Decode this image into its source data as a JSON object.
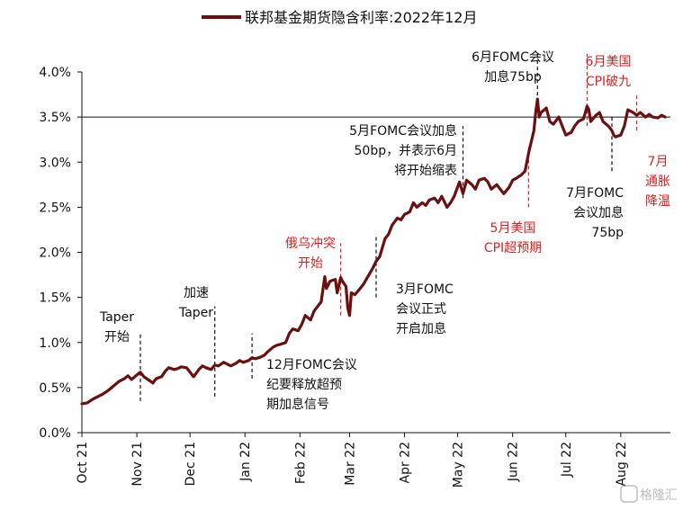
{
  "chart_data": {
    "type": "line",
    "legend": {
      "label": "联邦基金期货隐含利率:2022年12月",
      "placement": "top-center"
    },
    "colors": {
      "series": "#6b0f0f",
      "annotation_black": "#111111",
      "annotation_red": "#e02020"
    },
    "ylim": [
      0.0,
      4.0
    ],
    "yticks": [
      "0.0%",
      "0.5%",
      "1.0%",
      "1.5%",
      "2.0%",
      "2.5%",
      "3.0%",
      "3.5%",
      "4.0%"
    ],
    "xlim": [
      "2021-10-01",
      "2022-08-29"
    ],
    "xticks": [
      {
        "date": "2021-10-01",
        "label": "Oct 21"
      },
      {
        "date": "2021-11-01",
        "label": "Nov 21"
      },
      {
        "date": "2021-12-01",
        "label": "Dec 21"
      },
      {
        "date": "2022-01-01",
        "label": "Jan 22"
      },
      {
        "date": "2022-02-01",
        "label": "Feb 22"
      },
      {
        "date": "2022-03-01",
        "label": "Mar 22"
      },
      {
        "date": "2022-04-01",
        "label": "Apr 22"
      },
      {
        "date": "2022-05-01",
        "label": "May 22"
      },
      {
        "date": "2022-06-01",
        "label": "Jun 22"
      },
      {
        "date": "2022-07-01",
        "label": "Jul 22"
      },
      {
        "date": "2022-08-01",
        "label": "Aug 22"
      }
    ],
    "reference_line": 3.5,
    "series": [
      {
        "name": "联邦基金期货隐含利率:2022年12月",
        "points": [
          [
            "2021-10-01",
            0.32
          ],
          [
            "2021-10-04",
            0.33
          ],
          [
            "2021-10-07",
            0.37
          ],
          [
            "2021-10-10",
            0.4
          ],
          [
            "2021-10-13",
            0.43
          ],
          [
            "2021-10-16",
            0.47
          ],
          [
            "2021-10-19",
            0.52
          ],
          [
            "2021-10-22",
            0.57
          ],
          [
            "2021-10-25",
            0.6
          ],
          [
            "2021-10-27",
            0.63
          ],
          [
            "2021-10-29",
            0.59
          ],
          [
            "2021-11-01",
            0.64
          ],
          [
            "2021-11-03",
            0.67
          ],
          [
            "2021-11-05",
            0.62
          ],
          [
            "2021-11-08",
            0.58
          ],
          [
            "2021-11-10",
            0.55
          ],
          [
            "2021-11-12",
            0.6
          ],
          [
            "2021-11-15",
            0.62
          ],
          [
            "2021-11-17",
            0.68
          ],
          [
            "2021-11-19",
            0.72
          ],
          [
            "2021-11-22",
            0.7
          ],
          [
            "2021-11-24",
            0.71
          ],
          [
            "2021-11-26",
            0.73
          ],
          [
            "2021-11-29",
            0.72
          ],
          [
            "2021-12-01",
            0.67
          ],
          [
            "2021-12-03",
            0.62
          ],
          [
            "2021-12-06",
            0.7
          ],
          [
            "2021-12-08",
            0.74
          ],
          [
            "2021-12-10",
            0.72
          ],
          [
            "2021-12-13",
            0.7
          ],
          [
            "2021-12-15",
            0.75
          ],
          [
            "2021-12-17",
            0.74
          ],
          [
            "2021-12-20",
            0.78
          ],
          [
            "2021-12-22",
            0.76
          ],
          [
            "2021-12-24",
            0.74
          ],
          [
            "2021-12-27",
            0.77
          ],
          [
            "2021-12-29",
            0.8
          ],
          [
            "2021-12-31",
            0.78
          ],
          [
            "2022-01-03",
            0.8
          ],
          [
            "2022-01-05",
            0.83
          ],
          [
            "2022-01-07",
            0.82
          ],
          [
            "2022-01-10",
            0.84
          ],
          [
            "2022-01-12",
            0.86
          ],
          [
            "2022-01-14",
            0.9
          ],
          [
            "2022-01-17",
            0.95
          ],
          [
            "2022-01-19",
            0.97
          ],
          [
            "2022-01-21",
            0.98
          ],
          [
            "2022-01-24",
            1.0
          ],
          [
            "2022-01-26",
            1.1
          ],
          [
            "2022-01-28",
            1.15
          ],
          [
            "2022-01-31",
            1.13
          ],
          [
            "2022-02-02",
            1.2
          ],
          [
            "2022-02-04",
            1.3
          ],
          [
            "2022-02-07",
            1.25
          ],
          [
            "2022-02-09",
            1.35
          ],
          [
            "2022-02-11",
            1.4
          ],
          [
            "2022-02-13",
            1.45
          ],
          [
            "2022-02-15",
            1.73
          ],
          [
            "2022-02-16",
            1.6
          ],
          [
            "2022-02-18",
            1.68
          ],
          [
            "2022-02-21",
            1.7
          ],
          [
            "2022-02-22",
            1.55
          ],
          [
            "2022-02-24",
            1.72
          ],
          [
            "2022-02-25",
            1.68
          ],
          [
            "2022-02-27",
            1.62
          ],
          [
            "2022-02-28",
            1.38
          ],
          [
            "2022-03-01",
            1.3
          ],
          [
            "2022-03-02",
            1.55
          ],
          [
            "2022-03-04",
            1.53
          ],
          [
            "2022-03-07",
            1.6
          ],
          [
            "2022-03-09",
            1.65
          ],
          [
            "2022-03-11",
            1.72
          ],
          [
            "2022-03-14",
            1.82
          ],
          [
            "2022-03-16",
            1.9
          ],
          [
            "2022-03-18",
            1.95
          ],
          [
            "2022-03-21",
            2.15
          ],
          [
            "2022-03-23",
            2.2
          ],
          [
            "2022-03-25",
            2.3
          ],
          [
            "2022-03-28",
            2.38
          ],
          [
            "2022-03-30",
            2.36
          ],
          [
            "2022-04-01",
            2.42
          ],
          [
            "2022-04-04",
            2.45
          ],
          [
            "2022-04-06",
            2.55
          ],
          [
            "2022-04-08",
            2.5
          ],
          [
            "2022-04-11",
            2.55
          ],
          [
            "2022-04-13",
            2.52
          ],
          [
            "2022-04-15",
            2.58
          ],
          [
            "2022-04-18",
            2.6
          ],
          [
            "2022-04-20",
            2.55
          ],
          [
            "2022-04-22",
            2.62
          ],
          [
            "2022-04-25",
            2.5
          ],
          [
            "2022-04-27",
            2.55
          ],
          [
            "2022-04-29",
            2.62
          ],
          [
            "2022-05-02",
            2.78
          ],
          [
            "2022-05-04",
            2.65
          ],
          [
            "2022-05-06",
            2.8
          ],
          [
            "2022-05-09",
            2.75
          ],
          [
            "2022-05-11",
            2.7
          ],
          [
            "2022-05-13",
            2.8
          ],
          [
            "2022-05-16",
            2.82
          ],
          [
            "2022-05-18",
            2.78
          ],
          [
            "2022-05-20",
            2.7
          ],
          [
            "2022-05-23",
            2.75
          ],
          [
            "2022-05-25",
            2.7
          ],
          [
            "2022-05-27",
            2.65
          ],
          [
            "2022-05-30",
            2.72
          ],
          [
            "2022-06-01",
            2.8
          ],
          [
            "2022-06-03",
            2.82
          ],
          [
            "2022-06-06",
            2.86
          ],
          [
            "2022-06-08",
            2.9
          ],
          [
            "2022-06-10",
            3.1
          ],
          [
            "2022-06-13",
            3.35
          ],
          [
            "2022-06-14",
            3.55
          ],
          [
            "2022-06-15",
            3.7
          ],
          [
            "2022-06-16",
            3.5
          ],
          [
            "2022-06-17",
            3.55
          ],
          [
            "2022-06-20",
            3.6
          ],
          [
            "2022-06-22",
            3.45
          ],
          [
            "2022-06-24",
            3.42
          ],
          [
            "2022-06-27",
            3.5
          ],
          [
            "2022-06-29",
            3.4
          ],
          [
            "2022-07-01",
            3.3
          ],
          [
            "2022-07-04",
            3.33
          ],
          [
            "2022-07-06",
            3.4
          ],
          [
            "2022-07-08",
            3.45
          ],
          [
            "2022-07-11",
            3.48
          ],
          [
            "2022-07-13",
            3.62
          ],
          [
            "2022-07-14",
            3.58
          ],
          [
            "2022-07-15",
            3.45
          ],
          [
            "2022-07-18",
            3.52
          ],
          [
            "2022-07-20",
            3.55
          ],
          [
            "2022-07-22",
            3.45
          ],
          [
            "2022-07-25",
            3.4
          ],
          [
            "2022-07-27",
            3.35
          ],
          [
            "2022-07-28",
            3.3
          ],
          [
            "2022-07-29",
            3.28
          ],
          [
            "2022-08-01",
            3.3
          ],
          [
            "2022-08-03",
            3.4
          ],
          [
            "2022-08-05",
            3.58
          ],
          [
            "2022-08-08",
            3.55
          ],
          [
            "2022-08-10",
            3.52
          ],
          [
            "2022-08-12",
            3.55
          ],
          [
            "2022-08-15",
            3.5
          ],
          [
            "2022-08-17",
            3.53
          ],
          [
            "2022-08-19",
            3.5
          ],
          [
            "2022-08-22",
            3.49
          ],
          [
            "2022-08-24",
            3.52
          ],
          [
            "2022-08-26",
            3.5
          ]
        ]
      }
    ],
    "event_markers": [
      {
        "date": "2021-11-03",
        "y_from": 0.35,
        "y_to": 1.1,
        "color": "annotation_black"
      },
      {
        "date": "2021-12-15",
        "y_from": 0.4,
        "y_to": 1.4,
        "color": "annotation_black"
      },
      {
        "date": "2022-01-05",
        "y_from": 0.6,
        "y_to": 1.1,
        "color": "annotation_black"
      },
      {
        "date": "2022-02-24",
        "y_from": 1.3,
        "y_to": 2.1,
        "color": "annotation_red"
      },
      {
        "date": "2022-03-16",
        "y_from": 1.5,
        "y_to": 2.2,
        "color": "annotation_black"
      },
      {
        "date": "2022-05-04",
        "y_from": 2.6,
        "y_to": 3.4,
        "color": "annotation_black"
      },
      {
        "date": "2022-06-10",
        "y_from": 2.5,
        "y_to": 3.2,
        "color": "annotation_red"
      },
      {
        "date": "2022-06-15",
        "y_from": 3.6,
        "y_to": 4.2,
        "color": "annotation_black"
      },
      {
        "date": "2022-07-13",
        "y_from": 3.4,
        "y_to": 4.2,
        "color": "annotation_red"
      },
      {
        "date": "2022-07-27",
        "y_from": 2.9,
        "y_to": 3.5,
        "color": "annotation_black"
      },
      {
        "date": "2022-08-10",
        "y_from": 3.35,
        "y_to": 3.75,
        "color": "annotation_red"
      }
    ],
    "annotations": [
      {
        "lines": [
          "Taper",
          "开始"
        ],
        "color": "annotation_black"
      },
      {
        "lines": [
          "加速",
          "Taper"
        ],
        "color": "annotation_black"
      },
      {
        "lines": [
          "12月FOMC会议",
          "纪要释放超预",
          "期加息信号"
        ],
        "color": "annotation_black"
      },
      {
        "lines": [
          "俄乌冲突",
          "开始"
        ],
        "color": "annotation_red"
      },
      {
        "lines": [
          "3月FOMC",
          "会议正式",
          "开启加息"
        ],
        "color": "annotation_black"
      },
      {
        "lines": [
          "5月FOMC会议加息",
          "50bp，并表示6月",
          "将开始缩表"
        ],
        "color": "annotation_black"
      },
      {
        "lines": [
          "5月美国",
          "CPI超预期"
        ],
        "color": "annotation_red"
      },
      {
        "lines": [
          "6月FOMC会议",
          "加息75bp"
        ],
        "color": "annotation_black"
      },
      {
        "lines": [
          "6月美国",
          "CPI破九"
        ],
        "color": "annotation_red"
      },
      {
        "lines": [
          "7月FOMC",
          "会议加息",
          "75bp"
        ],
        "color": "annotation_black"
      },
      {
        "lines": [
          "7月",
          "通胀",
          "降温"
        ],
        "color": "annotation_red"
      }
    ]
  },
  "watermark": {
    "text": "格隆汇"
  }
}
